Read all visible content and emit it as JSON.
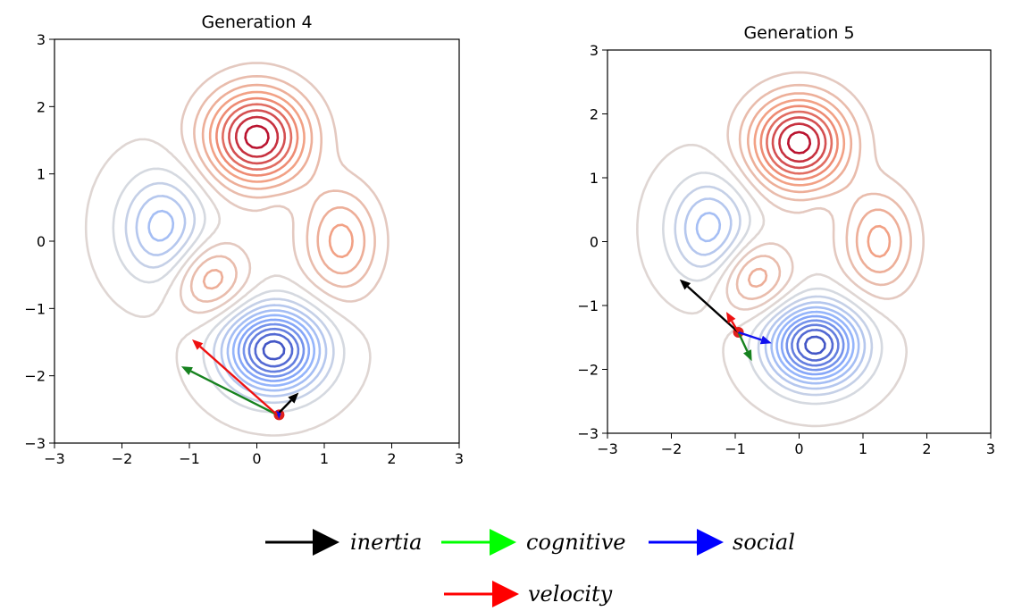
{
  "chart_data": [
    {
      "type": "contour",
      "title": "Generation 4",
      "xlim": [
        -3,
        3
      ],
      "ylim": [
        -3,
        3
      ],
      "xticks": [
        -3,
        -2,
        -1,
        0,
        1,
        2,
        3
      ],
      "yticks": [
        -3,
        -2,
        -1,
        0,
        1,
        2,
        3
      ],
      "xtick_labels": [
        "−3",
        "−2",
        "−1",
        "0",
        "1",
        "2",
        "3"
      ],
      "ytick_labels": [
        "−3",
        "−2",
        "−1",
        "0",
        "1",
        "2",
        "3"
      ],
      "colormap": "coolwarm",
      "contour_levels": 20,
      "particle": {
        "x": 0.33,
        "y": -2.58,
        "color": "#e0201c"
      },
      "arrows": [
        {
          "component": "inertia",
          "x": 0.3,
          "y": -2.58,
          "dx": 0.32,
          "dy": 0.33,
          "color": "#000000"
        },
        {
          "component": "cognitive",
          "x": 0.3,
          "y": -2.58,
          "dx": -1.42,
          "dy": 0.72,
          "color": "#17821f"
        },
        {
          "component": "social",
          "x": 0.3,
          "y": -2.58,
          "dx": 0.06,
          "dy": 0.02,
          "color": "#1010ee"
        },
        {
          "component": "velocity",
          "x": 0.3,
          "y": -2.58,
          "dx": -1.26,
          "dy": 1.12,
          "color": "#ee1111"
        }
      ]
    },
    {
      "type": "contour",
      "title": "Generation 5",
      "xlim": [
        -3,
        3
      ],
      "ylim": [
        -3,
        3
      ],
      "xticks": [
        -3,
        -2,
        -1,
        0,
        1,
        2,
        3
      ],
      "yticks": [
        -3,
        -2,
        -1,
        0,
        1,
        2,
        3
      ],
      "xtick_labels": [
        "−3",
        "−2",
        "−1",
        "0",
        "1",
        "2",
        "3"
      ],
      "ytick_labels": [
        "−3",
        "−2",
        "−1",
        "0",
        "1",
        "2",
        "3"
      ],
      "colormap": "coolwarm",
      "contour_levels": 20,
      "particle": {
        "x": -0.95,
        "y": -1.42,
        "color": "#e0201c"
      },
      "arrows": [
        {
          "component": "inertia",
          "x": -0.95,
          "y": -1.42,
          "dx": -0.92,
          "dy": 0.83,
          "color": "#000000"
        },
        {
          "component": "cognitive",
          "x": -0.95,
          "y": -1.42,
          "dx": 0.21,
          "dy": -0.45,
          "color": "#17821f"
        },
        {
          "component": "social",
          "x": -0.95,
          "y": -1.42,
          "dx": 0.52,
          "dy": -0.17,
          "color": "#1010ee"
        },
        {
          "component": "velocity",
          "x": -0.95,
          "y": -1.42,
          "dx": -0.19,
          "dy": 0.32,
          "color": "#ee1111"
        }
      ]
    }
  ],
  "legend": {
    "items": [
      {
        "label": "inertia",
        "color": "#000000"
      },
      {
        "label": "cognitive",
        "color": "#00ff00"
      },
      {
        "label": "social",
        "color": "#0000ff"
      },
      {
        "label": "velocity",
        "color": "#ff0000"
      }
    ]
  }
}
